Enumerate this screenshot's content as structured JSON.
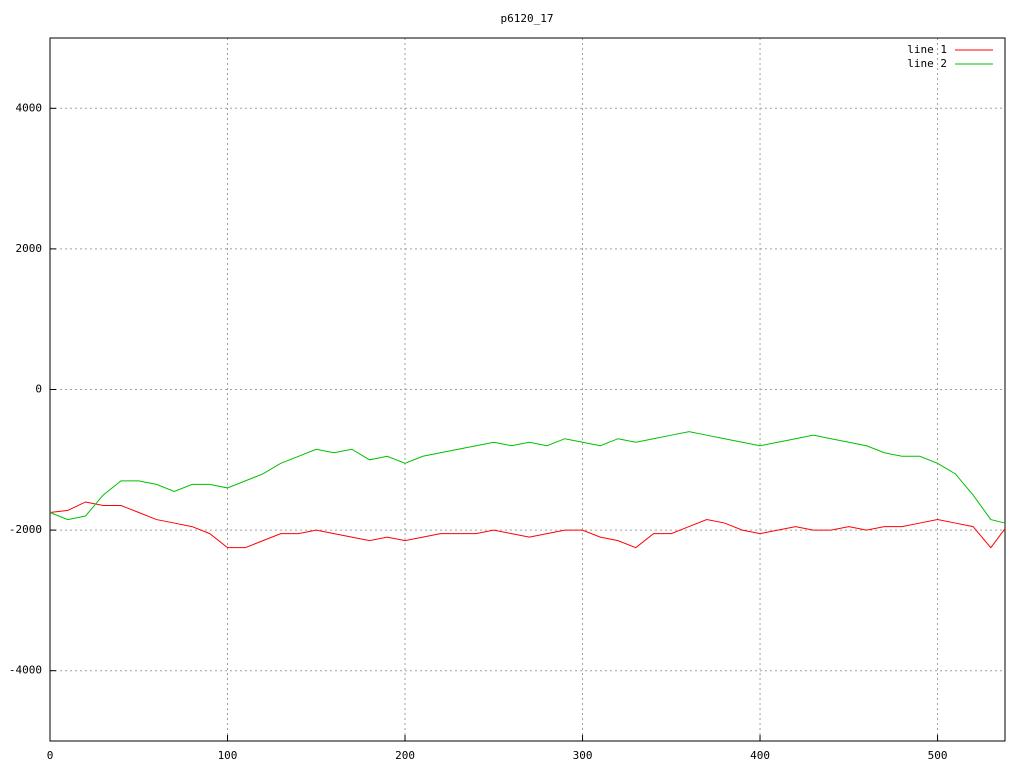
{
  "chart_data": {
    "type": "line",
    "title": "p6120_17",
    "x": [
      0,
      10,
      20,
      30,
      40,
      50,
      60,
      70,
      80,
      90,
      100,
      110,
      120,
      130,
      140,
      150,
      160,
      170,
      180,
      190,
      200,
      210,
      220,
      230,
      240,
      250,
      260,
      270,
      280,
      290,
      300,
      310,
      320,
      330,
      340,
      350,
      360,
      370,
      380,
      390,
      400,
      410,
      420,
      430,
      440,
      450,
      460,
      470,
      480,
      490,
      500,
      510,
      520,
      530,
      538
    ],
    "series": [
      {
        "name": "line 1",
        "color": "#ff0000",
        "values": [
          -1750,
          -1720,
          -1600,
          -1650,
          -1650,
          -1750,
          -1850,
          -1900,
          -1950,
          -2050,
          -2250,
          -2250,
          -2150,
          -2050,
          -2050,
          -2000,
          -2050,
          -2100,
          -2150,
          -2100,
          -2150,
          -2100,
          -2050,
          -2050,
          -2050,
          -2000,
          -2050,
          -2100,
          -2050,
          -2000,
          -2000,
          -2100,
          -2150,
          -2250,
          -2050,
          -2050,
          -1950,
          -1850,
          -1900,
          -2000,
          -2050,
          -2000,
          -1950,
          -2000,
          -2000,
          -1950,
          -2000,
          -1950,
          -1950,
          -1900,
          -1850,
          -1900,
          -1950,
          -2250,
          -1980
        ]
      },
      {
        "name": "line 2",
        "color": "#00c000",
        "values": [
          -1750,
          -1850,
          -1800,
          -1500,
          -1300,
          -1300,
          -1350,
          -1450,
          -1350,
          -1350,
          -1400,
          -1300,
          -1200,
          -1050,
          -950,
          -850,
          -900,
          -850,
          -1000,
          -950,
          -1050,
          -950,
          -900,
          -850,
          -800,
          -750,
          -800,
          -750,
          -800,
          -700,
          -750,
          -800,
          -700,
          -750,
          -700,
          -650,
          -600,
          -650,
          -700,
          -750,
          -800,
          -750,
          -700,
          -650,
          -700,
          -750,
          -800,
          -900,
          -950,
          -950,
          -1050,
          -1200,
          -1500,
          -1850,
          -1900
        ]
      }
    ],
    "xlim": [
      0,
      538
    ],
    "xticks": [
      0,
      100,
      200,
      300,
      400,
      500
    ],
    "ylim": [
      -5000,
      5000
    ],
    "yticks": [
      -4000,
      -2000,
      0,
      2000,
      4000
    ],
    "grid": true,
    "legend": "top-right"
  }
}
